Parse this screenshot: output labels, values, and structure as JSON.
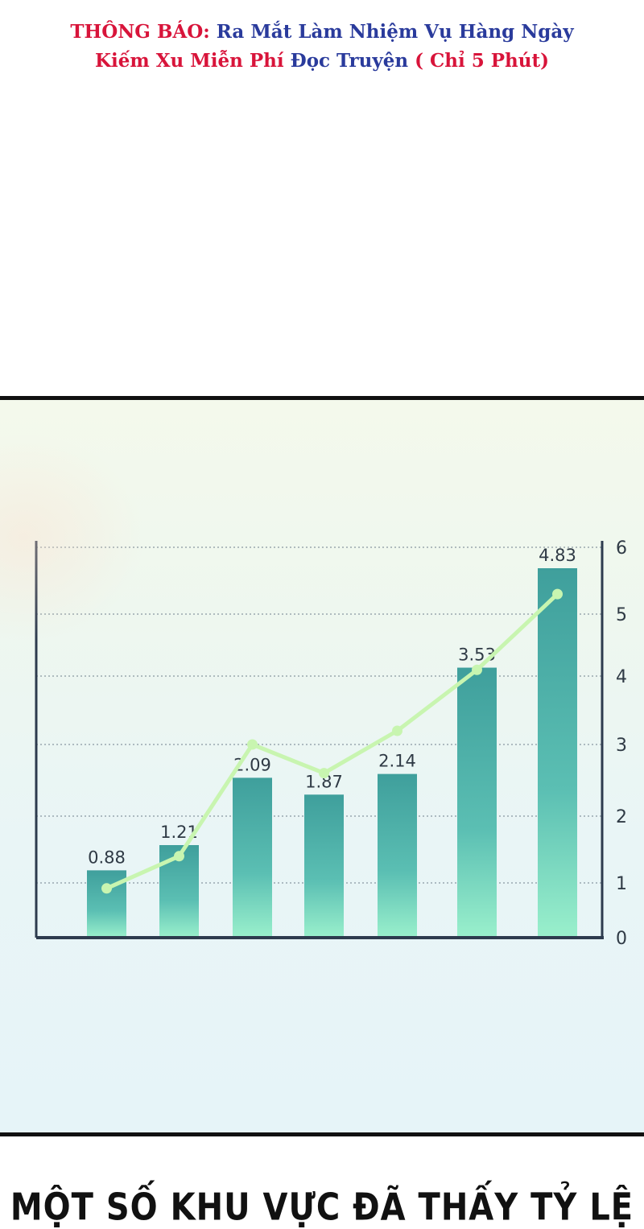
{
  "notice": {
    "label": "THÔNG BÁO:",
    "line1_rest": "Ra Mắt Làm Nhiệm Vụ Hàng Ngày",
    "line2_a": "Kiếm Xu Miễn Phí",
    "line2_b": "Đọc Truyện",
    "line2_c": "( Chỉ 5 Phút)"
  },
  "caption": {
    "text": "MỘT SỐ KHU VỰC ĐÃ THẤY TỶ LỆ"
  },
  "colors": {
    "bar_top": "#3f9f9c",
    "bar_bottom": "#9af0cc",
    "line": "#c8f5b0",
    "axis": "#2d3b4e"
  },
  "chart_data": {
    "type": "bar",
    "categories": [
      "",
      "",
      "",
      "",
      "",
      "",
      ""
    ],
    "values": [
      0.88,
      1.21,
      2.09,
      1.87,
      2.14,
      3.53,
      4.83
    ],
    "value_labels": [
      "0.88",
      "1.21",
      "2.09",
      "1.87",
      "2.14",
      "3.53",
      "4.83"
    ],
    "line_values": [
      0.9,
      1.4,
      3.0,
      2.6,
      3.2,
      4.1,
      5.3
    ],
    "y_ticks": [
      "0",
      "1",
      "2",
      "3",
      "4",
      "5",
      "6"
    ],
    "ylim": [
      0,
      6
    ],
    "y_axis_side": "right",
    "grid": true,
    "title": "",
    "xlabel": "",
    "ylabel": ""
  }
}
